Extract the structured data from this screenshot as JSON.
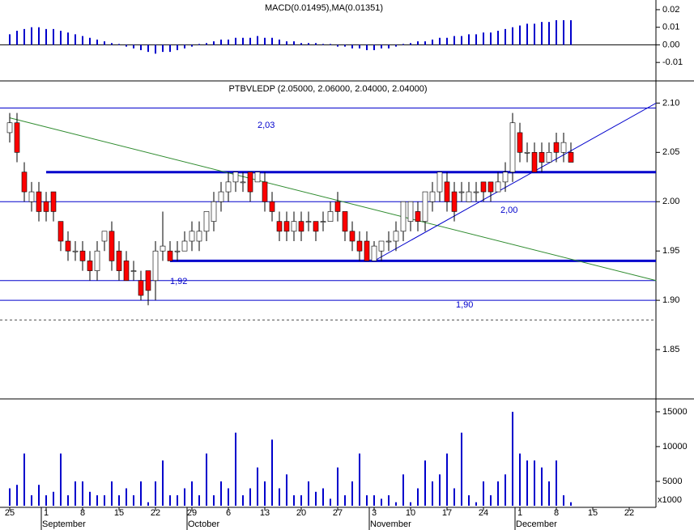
{
  "chart_data": [
    {
      "type": "bar",
      "title": "MACD(0.01495),MA(0.01351)",
      "color": "#0000cc",
      "ylim": [
        -0.0205,
        0.0255
      ],
      "yticks": [
        0.02,
        0.01,
        {
          "value": 0,
          "label": "0.00"
        },
        -0.01
      ],
      "values": [
        0.006,
        0.008,
        0.009,
        0.01,
        0.01,
        0.009,
        0.009,
        0.008,
        0.007,
        0.006,
        0.005,
        0.004,
        0.003,
        0.002,
        0.001,
        0.0005,
        -0.001,
        -0.002,
        -0.003,
        -0.004,
        -0.005,
        -0.004,
        -0.004,
        -0.003,
        -0.002,
        -0.001,
        0.0005,
        0.001,
        0.002,
        0.003,
        0.003,
        0.004,
        0.004,
        0.004,
        0.005,
        0.004,
        0.004,
        0.003,
        0.002,
        0.002,
        0.001,
        0.001,
        0.001,
        0.0005,
        0.0005,
        -0.001,
        -0.001,
        -0.002,
        -0.002,
        -0.003,
        -0.003,
        -0.002,
        -0.002,
        -0.001,
        0.0005,
        0.001,
        0.002,
        0.002,
        0.003,
        0.004,
        0.004,
        0.005,
        0.005,
        0.006,
        0.006,
        0.007,
        0.007,
        0.008,
        0.009,
        0.01,
        0.011,
        0.012,
        0.012,
        0.013,
        0.013,
        0.014,
        0.014,
        0.014
      ]
    },
    {
      "type": "candlestick",
      "title": "PTBVLEDP (2.05000, 2.06000, 2.04000, 2.04000)",
      "ylim": [
        1.8,
        2.12
      ],
      "yticks": [
        1.85,
        {
          "value": 1.9,
          "label": "1.90"
        },
        1.95,
        {
          "value": 2,
          "label": "2.00"
        },
        2.05,
        {
          "value": 2.1,
          "label": "2.10"
        }
      ],
      "up_color": "#ffffff",
      "down_color": "#ff0000",
      "open": [
        2.07,
        2.08,
        2.03,
        2.0,
        2.01,
        2.0,
        2.01,
        1.98,
        1.96,
        1.95,
        1.95,
        1.94,
        1.93,
        1.96,
        1.97,
        1.95,
        1.94,
        1.93,
        1.92,
        1.93,
        1.92,
        1.95,
        1.95,
        1.95,
        1.95,
        1.96,
        1.96,
        1.97,
        1.98,
        2.0,
        2.01,
        2.02,
        2.02,
        2.03,
        2.02,
        2.02,
        2.0,
        1.98,
        1.98,
        1.97,
        1.98,
        1.98,
        1.98,
        1.98,
        1.98,
        2.0,
        1.99,
        1.97,
        1.96,
        1.96,
        1.94,
        1.95,
        1.96,
        1.96,
        1.97,
        1.98,
        1.99,
        1.98,
        2.0,
        2.01,
        2.02,
        2.01,
        2.01,
        2.0,
        2.01,
        2.02,
        2.02,
        2.01,
        2.02,
        2.03,
        2.07,
        2.05,
        2.05,
        2.05,
        2.04,
        2.06,
        2.05,
        2.05
      ],
      "high": [
        2.09,
        2.09,
        2.04,
        2.02,
        2.02,
        2.01,
        2.01,
        1.98,
        1.97,
        1.96,
        1.96,
        1.95,
        1.96,
        1.97,
        1.98,
        1.96,
        1.95,
        1.94,
        1.93,
        1.93,
        1.96,
        1.99,
        1.96,
        1.96,
        1.97,
        1.98,
        1.98,
        1.99,
        2.01,
        2.02,
        2.03,
        2.03,
        2.03,
        2.03,
        2.03,
        2.03,
        2.01,
        1.99,
        1.99,
        1.99,
        1.99,
        1.99,
        1.98,
        1.99,
        2.0,
        2.01,
        1.99,
        1.98,
        1.97,
        1.97,
        1.96,
        1.96,
        1.97,
        1.98,
        2.0,
        2.0,
        2.0,
        2.01,
        2.02,
        2.03,
        2.03,
        2.02,
        2.02,
        2.02,
        2.02,
        2.02,
        2.02,
        2.03,
        2.04,
        2.09,
        2.08,
        2.06,
        2.06,
        2.06,
        2.06,
        2.07,
        2.07,
        2.06
      ],
      "low": [
        2.06,
        2.04,
        2.0,
        1.99,
        1.98,
        1.98,
        1.98,
        1.95,
        1.94,
        1.94,
        1.93,
        1.92,
        1.92,
        1.95,
        1.93,
        1.92,
        1.92,
        1.92,
        1.9,
        1.895,
        1.9,
        1.94,
        1.94,
        1.94,
        1.95,
        1.95,
        1.95,
        1.96,
        1.97,
        1.99,
        2.0,
        2.01,
        2.01,
        2.0,
        2.02,
        1.99,
        1.98,
        1.96,
        1.96,
        1.96,
        1.96,
        1.97,
        1.96,
        1.97,
        1.98,
        1.98,
        1.96,
        1.95,
        1.94,
        1.94,
        1.94,
        1.94,
        1.95,
        1.95,
        1.96,
        1.97,
        1.97,
        1.97,
        1.99,
        2.0,
        1.99,
        1.98,
        2.0,
        2.0,
        2.0,
        2.0,
        2.0,
        2.01,
        2.01,
        2.02,
        2.04,
        2.04,
        2.03,
        2.03,
        2.04,
        2.04,
        2.04,
        2.04
      ],
      "close": [
        2.08,
        2.05,
        2.01,
        2.01,
        1.99,
        1.99,
        1.99,
        1.96,
        1.95,
        1.95,
        1.94,
        1.93,
        1.95,
        1.97,
        1.94,
        1.93,
        1.92,
        1.93,
        1.905,
        1.91,
        1.95,
        1.955,
        1.94,
        1.95,
        1.96,
        1.97,
        1.97,
        1.99,
        2.0,
        2.01,
        2.02,
        2.03,
        2.02,
        2.01,
        2.03,
        2.0,
        1.99,
        1.97,
        1.97,
        1.98,
        1.97,
        1.98,
        1.97,
        1.98,
        1.99,
        1.99,
        1.97,
        1.96,
        1.95,
        1.94,
        1.955,
        1.96,
        1.96,
        1.97,
        2.0,
        2.0,
        1.98,
        2.01,
        2.01,
        2.03,
        2.0,
        1.99,
        2.01,
        2.01,
        2.01,
        2.01,
        2.01,
        2.02,
        2.03,
        2.08,
        2.05,
        2.05,
        2.03,
        2.04,
        2.05,
        2.05,
        2.06,
        2.04
      ],
      "levels": [
        {
          "value": 2.095,
          "width": 1,
          "from": 0
        },
        {
          "value": 2.03,
          "width": 3,
          "from": 5
        },
        {
          "value": 2,
          "width": 1,
          "from": 0
        },
        {
          "value": 1.94,
          "width": 3,
          "from": 22
        },
        {
          "value": 1.92,
          "width": 1,
          "from": 0
        },
        {
          "value": 1.9,
          "width": 1,
          "from": 0
        },
        {
          "value": 1.88,
          "width": 1,
          "from": 0,
          "dash": true
        }
      ],
      "trendlines": [
        {
          "color": "#2e8b2e",
          "from": [
            0,
            2.085
          ],
          "to": [
            88.7,
            1.92
          ]
        },
        {
          "color": "#0000cc",
          "from": [
            50,
            1.94
          ],
          "to": [
            88.7,
            2.1
          ]
        }
      ],
      "annotations": [
        "2,03",
        "1,92",
        "2,00",
        "1,90"
      ]
    },
    {
      "type": "bar",
      "color": "#0000cc",
      "unit": "x1000",
      "ylim": [
        1500,
        17200
      ],
      "yticks": [
        5000,
        10000,
        15000
      ],
      "categories": [
        "25",
        null,
        null,
        null,
        null,
        "1",
        null,
        null,
        null,
        null,
        "8",
        null,
        null,
        null,
        null,
        "15",
        null,
        null,
        null,
        null,
        "22",
        null,
        null,
        null,
        null,
        "29",
        null,
        null,
        null,
        null,
        "6",
        null,
        null,
        null,
        null,
        "13",
        null,
        null,
        null,
        null,
        "20",
        null,
        null,
        null,
        null,
        "27",
        null,
        null,
        null,
        null,
        "3",
        null,
        null,
        null,
        null,
        "10",
        null,
        null,
        null,
        null,
        "17",
        null,
        null,
        null,
        null,
        "24",
        null,
        null,
        null,
        null,
        "1",
        null,
        null,
        null,
        null,
        "8",
        null,
        null,
        null,
        null,
        "15",
        null,
        null,
        null,
        null,
        "22",
        null,
        null
      ],
      "months": [
        {
          "label": "September",
          "index": 5
        },
        {
          "label": "October",
          "index": 25
        },
        {
          "label": "November",
          "index": 50
        },
        {
          "label": "December",
          "index": 70
        }
      ],
      "values": [
        4000,
        4500,
        9000,
        3000,
        4500,
        3000,
        3500,
        9000,
        3000,
        5000,
        5000,
        3500,
        3000,
        3000,
        5000,
        3000,
        4000,
        3000,
        5000,
        2000,
        5000,
        8000,
        3000,
        3000,
        4000,
        5000,
        3000,
        9000,
        3000,
        5000,
        4000,
        12000,
        3000,
        4000,
        7000,
        5000,
        11000,
        4000,
        6000,
        3000,
        3000,
        5000,
        3500,
        4000,
        2500,
        7000,
        3000,
        5000,
        9000,
        3000,
        3000,
        2500,
        3000,
        2000,
        6000,
        2000,
        4000,
        8000,
        5000,
        6000,
        9000,
        4000,
        12000,
        3000,
        2000,
        5000,
        3000,
        5000,
        6000,
        15000,
        9000,
        8000,
        8000,
        7000,
        5000,
        8000,
        3000,
        2000,
        null,
        null,
        null,
        null,
        null,
        null,
        null,
        null,
        null,
        null
      ]
    }
  ]
}
